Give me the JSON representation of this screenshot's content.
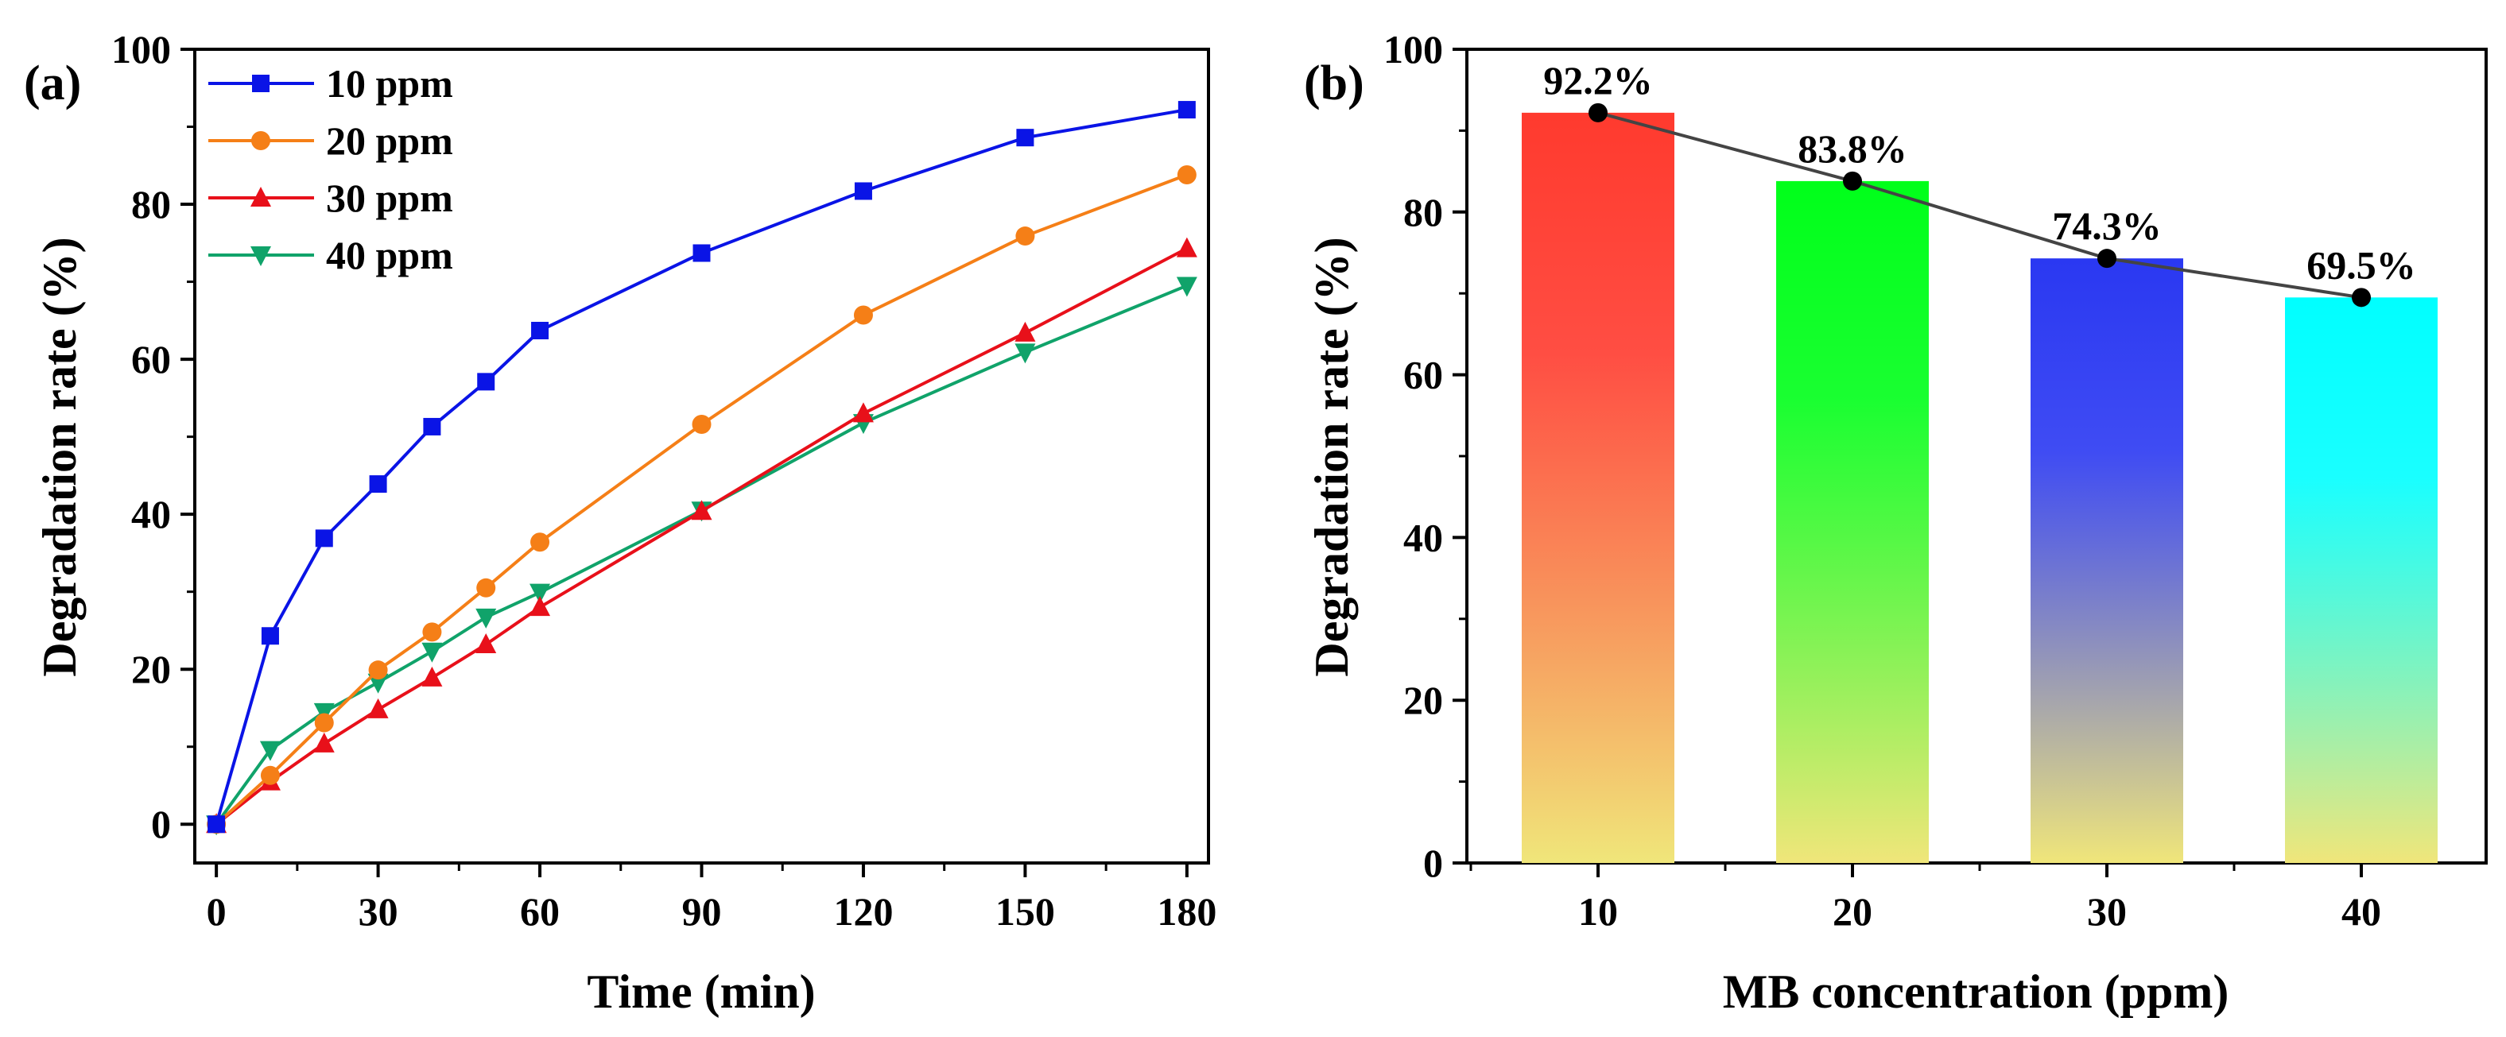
{
  "colors": {
    "s10": "#0a14e6",
    "s20": "#f57f17",
    "s30": "#e8101a",
    "s40": "#10a36a",
    "axis": "#000000",
    "trend_line": "#444444",
    "trend_marker": "#000000"
  },
  "chart_data": [
    {
      "type": "line",
      "panel_label": "(a)",
      "xlabel": "Time (min)",
      "ylabel": "Degradation rate (%)",
      "xlim": [
        -4,
        184
      ],
      "ylim": [
        -5,
        100
      ],
      "xticks": [
        0,
        30,
        60,
        90,
        120,
        150,
        180
      ],
      "xtick_labels": [
        "0",
        "30",
        "60",
        "90",
        "120",
        "150",
        "180"
      ],
      "yticks": [
        0,
        20,
        40,
        60,
        80,
        100
      ],
      "ytick_labels": [
        "0",
        "20",
        "40",
        "60",
        "80",
        "100"
      ],
      "legend_position": "top-left",
      "x": [
        0,
        10,
        20,
        30,
        40,
        50,
        60,
        90,
        120,
        150,
        180
      ],
      "series": [
        {
          "name": "10 ppm",
          "color_key": "s10",
          "marker": "square",
          "values": [
            0,
            24.3,
            36.9,
            43.9,
            51.3,
            57.1,
            63.7,
            73.7,
            81.7,
            88.6,
            92.2
          ]
        },
        {
          "name": "20 ppm",
          "color_key": "s20",
          "marker": "circle",
          "values": [
            0,
            6.3,
            13.1,
            19.9,
            24.8,
            30.5,
            36.4,
            51.6,
            65.7,
            75.9,
            83.8
          ]
        },
        {
          "name": "30 ppm",
          "color_key": "s30",
          "marker": "triangle-up",
          "values": [
            0,
            5.5,
            10.4,
            14.8,
            18.9,
            23.2,
            28.0,
            40.4,
            53.0,
            63.4,
            74.3
          ]
        },
        {
          "name": "40 ppm",
          "color_key": "s40",
          "marker": "triangle-down",
          "values": [
            0,
            9.6,
            14.5,
            18.3,
            22.3,
            26.7,
            29.9,
            40.5,
            51.8,
            60.9,
            69.5
          ]
        }
      ]
    },
    {
      "type": "bar",
      "panel_label": "(b)",
      "xlabel": "MB concentration (ppm)",
      "ylabel": "Degradation rate (%)",
      "categories": [
        "10",
        "20",
        "30",
        "40"
      ],
      "values": [
        92.2,
        83.8,
        74.3,
        69.5
      ],
      "data_labels": [
        "92.2%",
        "83.8%",
        "74.3%",
        "69.5%"
      ],
      "ylim": [
        0,
        100
      ],
      "yticks": [
        0,
        20,
        40,
        60,
        80,
        100
      ],
      "ytick_labels": [
        "0",
        "20",
        "40",
        "60",
        "80",
        "100"
      ],
      "bar_gradients": [
        {
          "top": "#ff3a2e",
          "bottom": "#f0e67a"
        },
        {
          "top": "#00ff1a",
          "bottom": "#f0e67a"
        },
        {
          "top": "#2a38f2",
          "bottom": "#f0e67a"
        },
        {
          "top": "#00ffff",
          "bottom": "#f0e67a"
        }
      ],
      "trend_line": true
    }
  ]
}
